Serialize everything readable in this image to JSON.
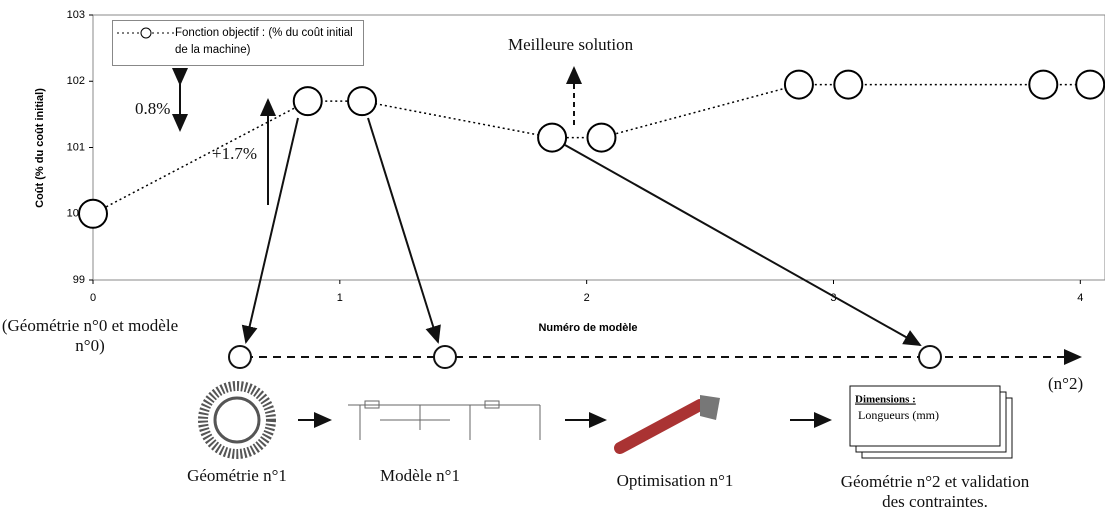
{
  "chart_data": {
    "type": "line",
    "y_label": "Coût (% du coût initial)",
    "x_label": "Numéro de modèle",
    "x": [
      0,
      0.87,
      1.09,
      1.86,
      2.06,
      2.86,
      3.06,
      3.85,
      4.04
    ],
    "series": [
      {
        "name": "Fonction objectif : (% du coût initial de la machine)",
        "color": "#000000",
        "values": [
          100,
          101.7,
          101.7,
          101.15,
          101.15,
          101.95,
          101.95,
          101.95,
          101.95
        ]
      }
    ],
    "xlim": [
      0,
      4.1
    ],
    "xticks": [
      0,
      1,
      2,
      3,
      4
    ],
    "ylim": [
      99,
      103
    ],
    "yticks": [
      99,
      100,
      101,
      102,
      103
    ],
    "annotations": [
      "Meilleure solution",
      "0.8%",
      "+1.7%"
    ]
  },
  "diagram": {
    "start_label": "(Géométrie n°0 et modèle n°0)",
    "end_label": "(n°2)",
    "steps": [
      "Géométrie n°1",
      "Modèle n°1",
      "Optimisation n°1",
      "Géométrie n°2 et validation des contraintes."
    ],
    "document": {
      "title": "Dimensions :",
      "line": "Longueurs (mm)"
    }
  }
}
